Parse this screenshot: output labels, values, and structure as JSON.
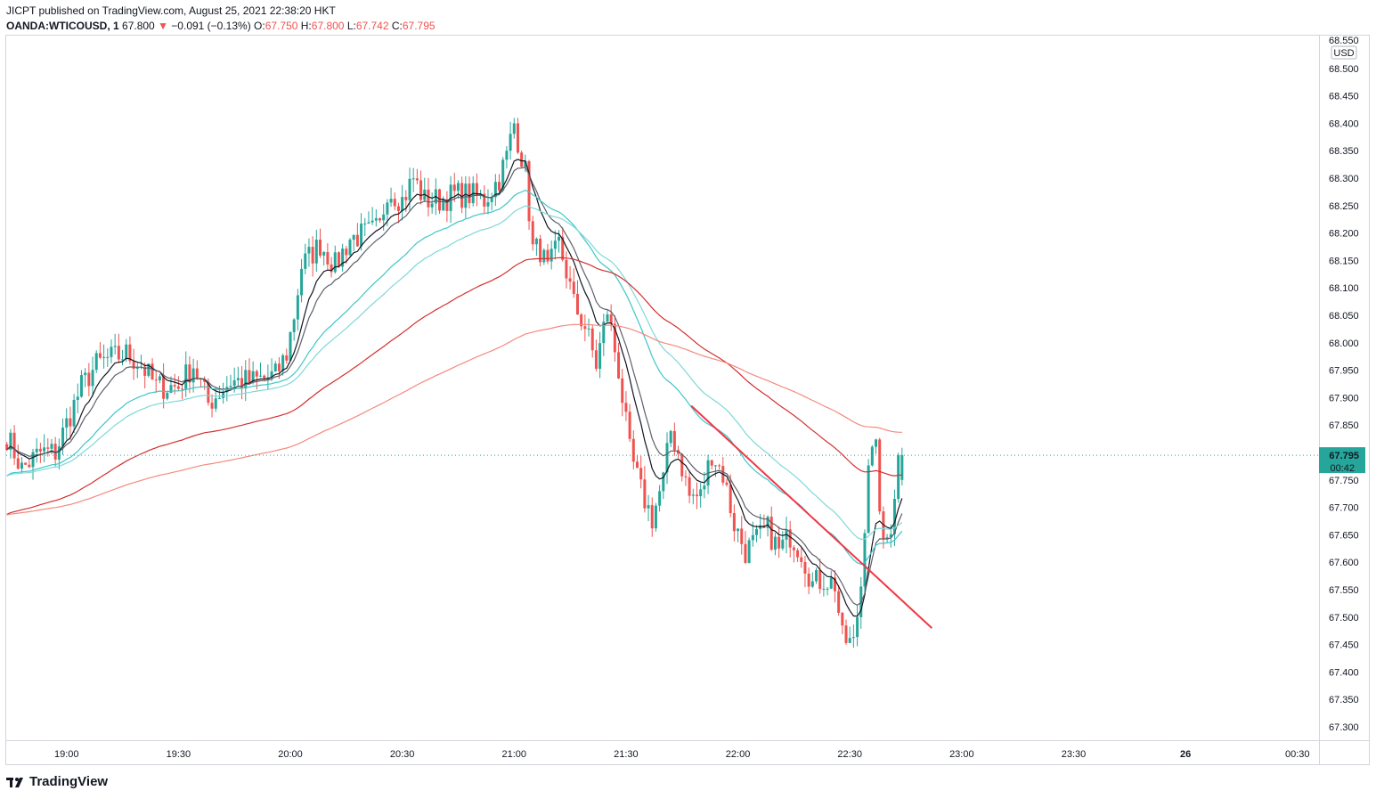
{
  "header": {
    "publisher": "JICPT published on TradingView.com, August 25, 2021 22:38:20 HKT",
    "symbol": "OANDA:WTICOUSD, 1",
    "last": "67.800",
    "change_arrow": "▼",
    "change": "−0.091 (−0.13%)",
    "o_label": "O:",
    "o_value": "67.750",
    "h_label": "H:",
    "h_value": "67.800",
    "l_label": "L:",
    "l_value": "67.742",
    "c_label": "C:",
    "c_value": "67.795"
  },
  "price_axis": {
    "currency": "USD",
    "top_partial_label": "68.550",
    "current_price": "67.795",
    "countdown": "00:42"
  },
  "footer": {
    "brand": "TradingView",
    "logo_icon": "tradingview-logo-icon"
  },
  "colors": {
    "up": "#26a69a",
    "down": "#ef5350",
    "ema_fast": "#131722",
    "ema_slow": "#5d606b",
    "ema_mid1": "#3ec6c8",
    "ema_mid2": "#7fd8d8",
    "ema_long1": "#d32f2f",
    "ema_long2": "#f48a7e",
    "trendline": "#f23645"
  },
  "chart_data": {
    "type": "candlestick",
    "title": "OANDA:WTICOUSD, 1",
    "xlabel": "",
    "ylabel": "",
    "ylim": [
      67.27,
      68.55
    ],
    "y_ticks": [
      "68.500",
      "68.450",
      "68.400",
      "68.350",
      "68.300",
      "68.250",
      "68.200",
      "68.150",
      "68.100",
      "68.050",
      "68.000",
      "67.950",
      "67.900",
      "67.850",
      "67.750",
      "67.700",
      "67.650",
      "67.600",
      "67.550",
      "67.500",
      "67.450",
      "67.400",
      "67.350",
      "67.300"
    ],
    "x_ticks": [
      {
        "label": "19:00",
        "min": -96
      },
      {
        "label": "19:30",
        "min": -66
      },
      {
        "label": "20:00",
        "min": -36
      },
      {
        "label": "20:30",
        "min": -6
      },
      {
        "label": "21:00",
        "min": 24
      },
      {
        "label": "21:30",
        "min": 54
      },
      {
        "label": "22:00",
        "min": 84
      },
      {
        "label": "22:30",
        "min": 114
      },
      {
        "label": "23:00",
        "min": 144
      },
      {
        "label": "23:30",
        "min": 174
      },
      {
        "label": "26",
        "min": 204
      },
      {
        "label": "00:30",
        "min": 234
      }
    ],
    "x_range_minutes_from_20_36": [
      -112,
      242
    ],
    "close_anchors": [
      [
        -112,
        67.83
      ],
      [
        -108,
        67.77
      ],
      [
        -103,
        67.8
      ],
      [
        -99,
        67.8
      ],
      [
        -95,
        67.87
      ],
      [
        -92,
        67.92
      ],
      [
        -88,
        67.96
      ],
      [
        -85,
        67.97
      ],
      [
        -80,
        67.98
      ],
      [
        -76,
        67.96
      ],
      [
        -72,
        67.92
      ],
      [
        -66,
        67.92
      ],
      [
        -62,
        67.96
      ],
      [
        -58,
        67.89
      ],
      [
        -52,
        67.93
      ],
      [
        -46,
        67.93
      ],
      [
        -40,
        67.94
      ],
      [
        -37,
        67.98
      ],
      [
        -35,
        68.05
      ],
      [
        -33,
        68.14
      ],
      [
        -28,
        68.18
      ],
      [
        -24,
        68.14
      ],
      [
        -20,
        68.19
      ],
      [
        -15,
        68.2
      ],
      [
        -12,
        68.21
      ],
      [
        -10,
        68.28
      ],
      [
        -6,
        68.26
      ],
      [
        -3,
        68.3
      ],
      [
        0,
        68.26
      ],
      [
        4,
        68.26
      ],
      [
        8,
        68.27
      ],
      [
        12,
        68.27
      ],
      [
        16,
        68.26
      ],
      [
        20,
        68.3
      ],
      [
        22,
        68.34
      ],
      [
        24,
        68.4
      ],
      [
        27,
        68.31
      ],
      [
        29,
        68.17
      ],
      [
        31,
        68.17
      ],
      [
        33,
        68.13
      ],
      [
        36,
        68.18
      ],
      [
        38,
        68.13
      ],
      [
        40,
        68.07
      ],
      [
        43,
        68.03
      ],
      [
        46,
        67.96
      ],
      [
        49,
        68.06
      ],
      [
        52,
        67.95
      ],
      [
        55,
        67.8
      ],
      [
        58,
        67.73
      ],
      [
        61,
        67.68
      ],
      [
        64,
        67.75
      ],
      [
        66,
        67.84
      ],
      [
        68,
        67.8
      ],
      [
        71,
        67.72
      ],
      [
        74,
        67.72
      ],
      [
        77,
        67.8
      ],
      [
        80,
        67.76
      ],
      [
        83,
        67.67
      ],
      [
        86,
        67.62
      ],
      [
        89,
        67.64
      ],
      [
        92,
        67.66
      ],
      [
        95,
        67.62
      ],
      [
        98,
        67.65
      ],
      [
        101,
        67.62
      ],
      [
        104,
        67.56
      ],
      [
        107,
        67.57
      ],
      [
        110,
        67.56
      ],
      [
        112,
        67.46
      ],
      [
        115,
        67.45
      ],
      [
        117,
        67.56
      ],
      [
        119,
        67.79
      ],
      [
        121,
        67.8
      ],
      [
        123,
        67.62
      ],
      [
        125,
        67.67
      ],
      [
        127,
        67.79
      ],
      [
        128,
        67.795
      ]
    ],
    "annotations": [
      {
        "type": "trendline",
        "from": {
          "min": 71.5,
          "price": 67.885
        },
        "to": {
          "min": 136,
          "price": 67.48
        }
      }
    ],
    "moving_averages": [
      {
        "type": "ema",
        "period": 9,
        "color": "ema_fast"
      },
      {
        "type": "ema",
        "period": 14,
        "color": "ema_slow"
      },
      {
        "type": "ema",
        "period": 36,
        "color": "ema_mid1"
      },
      {
        "type": "ema",
        "period": 50,
        "color": "ema_mid2"
      },
      {
        "type": "ema",
        "period": 100,
        "color": "ema_long1"
      },
      {
        "type": "ema",
        "period": 200,
        "color": "ema_long2"
      }
    ],
    "grid": false,
    "legend": "none"
  }
}
